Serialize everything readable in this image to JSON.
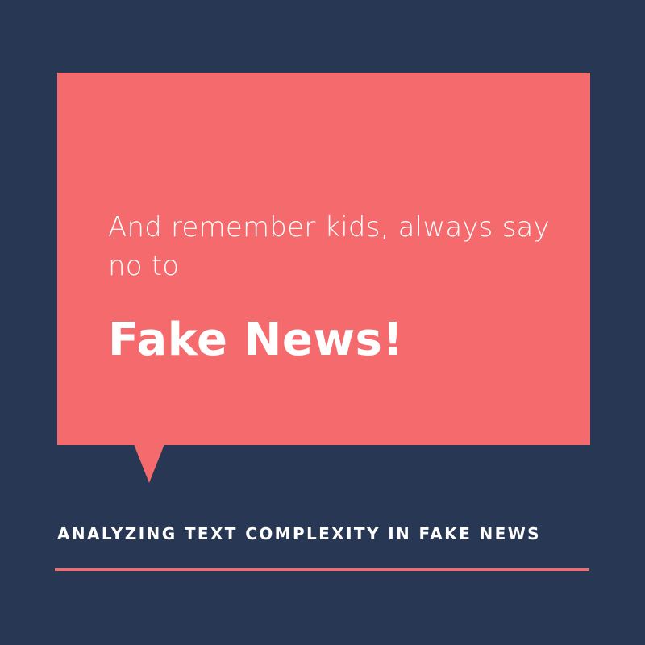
{
  "colors": {
    "background": "#283754",
    "accent": "#f46a6d",
    "text": "#ffffff"
  },
  "bubble": {
    "subtitle": "And remember kids, always say no to",
    "headline": "Fake News!"
  },
  "footer": {
    "title": "ANALYZING TEXT COMPLEXITY IN FAKE NEWS"
  }
}
